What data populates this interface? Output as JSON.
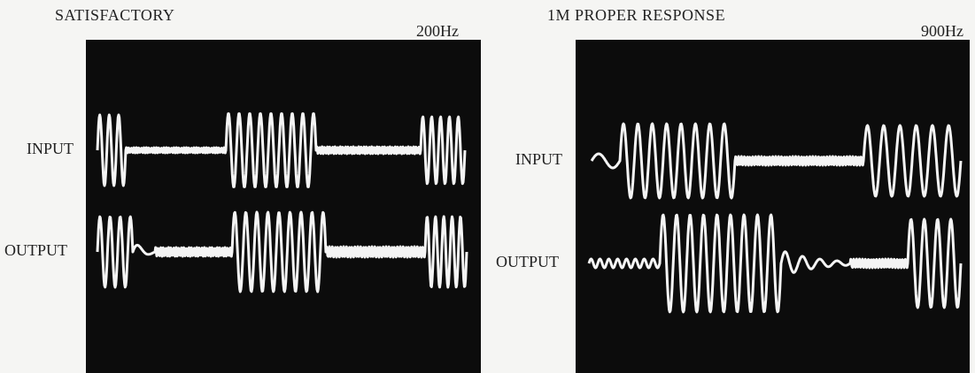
{
  "panels": [
    {
      "title": "SATISFACTORY",
      "frequency": "200Hz",
      "input_label": "INPUT",
      "output_label": "OUTPUT"
    },
    {
      "title": "1M PROPER RESPONSE",
      "frequency": "900Hz",
      "input_label": "INPUT",
      "output_label": "OUTPUT"
    }
  ]
}
